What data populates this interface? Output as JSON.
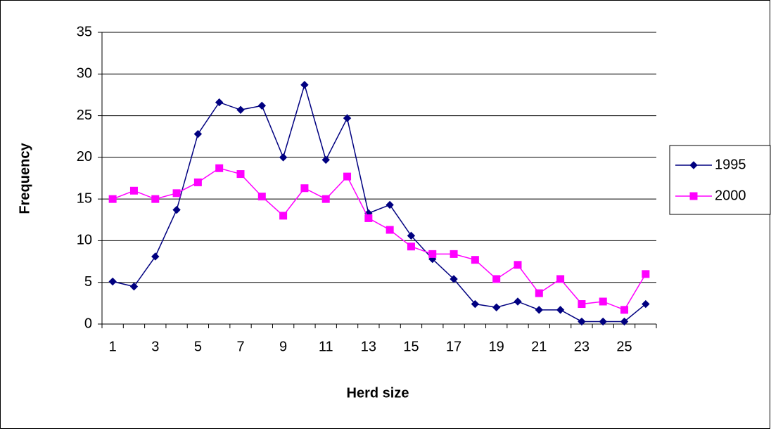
{
  "chart_data": {
    "type": "line",
    "x_label": "Herd size",
    "y_label": "Frequency",
    "categories": [
      1,
      null,
      3,
      null,
      5,
      null,
      7,
      null,
      9,
      null,
      11,
      null,
      13,
      null,
      15,
      null,
      17,
      null,
      19,
      null,
      21,
      null,
      23,
      null,
      25,
      null
    ],
    "series": [
      {
        "name": "1995",
        "color": "#000080",
        "marker": "diamond",
        "values": [
          5.1,
          4.5,
          8.1,
          13.7,
          22.8,
          26.6,
          25.7,
          26.2,
          20,
          28.7,
          19.7,
          24.7,
          13.3,
          14.3,
          10.6,
          7.8,
          5.4,
          2.4,
          2,
          2.7,
          1.7,
          1.7,
          0.3,
          0.3,
          0.3,
          2.4
        ]
      },
      {
        "name": "2000",
        "color": "#ff00ff",
        "marker": "square",
        "values": [
          15,
          16,
          15,
          15.7,
          17,
          18.7,
          18,
          15.3,
          13,
          16.3,
          15,
          17.7,
          12.7,
          11.3,
          9.3,
          8.4,
          8.4,
          7.7,
          5.4,
          7.1,
          3.7,
          5.4,
          2.4,
          2.7,
          1.7,
          6
        ]
      }
    ],
    "ylim": [
      0,
      35
    ],
    "yticks": [
      0,
      5,
      10,
      15,
      20,
      25,
      30,
      35
    ],
    "grid": true,
    "legend": "right"
  }
}
